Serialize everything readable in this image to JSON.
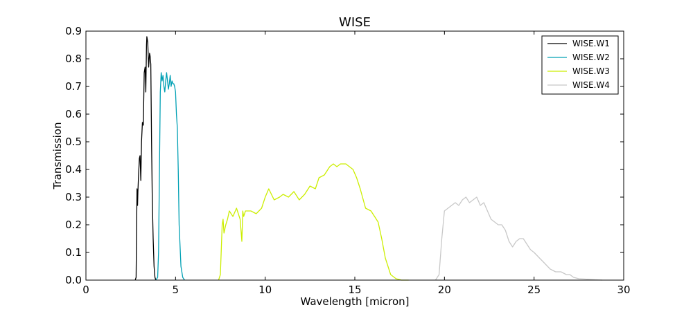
{
  "chart_data": {
    "type": "line",
    "title": "WISE",
    "xlabel": "Wavelength [micron]",
    "ylabel": "Transmission",
    "xlim": [
      0,
      30
    ],
    "ylim": [
      0,
      0.9
    ],
    "xticks": [
      "0",
      "5",
      "10",
      "15",
      "20",
      "25",
      "30"
    ],
    "yticks": [
      "0.0",
      "0.1",
      "0.2",
      "0.3",
      "0.4",
      "0.5",
      "0.6",
      "0.7",
      "0.8",
      "0.9"
    ],
    "grid": false,
    "legend_position": "top-right",
    "series": [
      {
        "name": "WISE.W1",
        "color": "#000000",
        "x": [
          2.75,
          2.8,
          2.85,
          2.88,
          2.9,
          2.93,
          2.98,
          3.02,
          3.06,
          3.1,
          3.15,
          3.2,
          3.25,
          3.3,
          3.34,
          3.38,
          3.4,
          3.45,
          3.5,
          3.55,
          3.58,
          3.62,
          3.66,
          3.7,
          3.75,
          3.8,
          3.85,
          3.9
        ],
        "y": [
          0.0,
          0.01,
          0.33,
          0.27,
          0.32,
          0.37,
          0.44,
          0.45,
          0.36,
          0.5,
          0.57,
          0.56,
          0.75,
          0.77,
          0.68,
          0.85,
          0.88,
          0.86,
          0.77,
          0.82,
          0.81,
          0.78,
          0.5,
          0.3,
          0.15,
          0.05,
          0.01,
          0.0
        ]
      },
      {
        "name": "WISE.W2",
        "color": "#00a0b4",
        "x": [
          3.9,
          4.0,
          4.05,
          4.1,
          4.15,
          4.2,
          4.25,
          4.3,
          4.35,
          4.4,
          4.45,
          4.5,
          4.55,
          4.6,
          4.65,
          4.7,
          4.75,
          4.8,
          4.85,
          4.9,
          4.95,
          5.0,
          5.05,
          5.1,
          5.15,
          5.2,
          5.3,
          5.4,
          5.5
        ],
        "y": [
          0.0,
          0.01,
          0.1,
          0.4,
          0.68,
          0.75,
          0.72,
          0.74,
          0.7,
          0.68,
          0.72,
          0.75,
          0.72,
          0.69,
          0.71,
          0.74,
          0.7,
          0.72,
          0.71,
          0.71,
          0.7,
          0.68,
          0.6,
          0.55,
          0.4,
          0.2,
          0.05,
          0.01,
          0.0
        ]
      },
      {
        "name": "WISE.W3",
        "color": "#ccee00",
        "x": [
          7.4,
          7.5,
          7.6,
          7.65,
          7.7,
          7.8,
          7.9,
          8.0,
          8.2,
          8.4,
          8.6,
          8.7,
          8.75,
          8.8,
          8.9,
          9.2,
          9.5,
          9.8,
          10.0,
          10.2,
          10.5,
          10.8,
          11.0,
          11.3,
          11.6,
          11.9,
          12.2,
          12.5,
          12.8,
          13.0,
          13.3,
          13.6,
          13.8,
          14.0,
          14.2,
          14.5,
          14.7,
          14.9,
          15.1,
          15.3,
          15.6,
          15.9,
          16.1,
          16.3,
          16.5,
          16.7,
          17.0,
          17.3,
          17.6,
          18.0
        ],
        "y": [
          0.0,
          0.02,
          0.2,
          0.22,
          0.17,
          0.2,
          0.22,
          0.25,
          0.23,
          0.26,
          0.22,
          0.14,
          0.25,
          0.23,
          0.25,
          0.25,
          0.24,
          0.26,
          0.3,
          0.33,
          0.29,
          0.3,
          0.31,
          0.3,
          0.32,
          0.29,
          0.31,
          0.34,
          0.33,
          0.37,
          0.38,
          0.41,
          0.42,
          0.41,
          0.42,
          0.42,
          0.41,
          0.4,
          0.37,
          0.33,
          0.26,
          0.25,
          0.23,
          0.21,
          0.15,
          0.08,
          0.02,
          0.005,
          0.0,
          0.0
        ]
      },
      {
        "name": "WISE.W4",
        "color": "#c8c8c8",
        "x": [
          19.5,
          19.7,
          19.85,
          20.0,
          20.2,
          20.4,
          20.6,
          20.8,
          21.0,
          21.2,
          21.4,
          21.6,
          21.8,
          22.0,
          22.2,
          22.4,
          22.6,
          22.8,
          23.0,
          23.2,
          23.4,
          23.6,
          23.8,
          24.0,
          24.2,
          24.4,
          24.6,
          24.8,
          25.0,
          25.3,
          25.6,
          25.9,
          26.2,
          26.5,
          26.8,
          27.0,
          27.2,
          27.5,
          28.0,
          28.5,
          28.8
        ],
        "y": [
          0.0,
          0.02,
          0.15,
          0.25,
          0.26,
          0.27,
          0.28,
          0.27,
          0.29,
          0.3,
          0.28,
          0.29,
          0.3,
          0.27,
          0.28,
          0.25,
          0.22,
          0.21,
          0.2,
          0.2,
          0.18,
          0.14,
          0.12,
          0.14,
          0.15,
          0.15,
          0.13,
          0.11,
          0.1,
          0.08,
          0.06,
          0.04,
          0.03,
          0.03,
          0.02,
          0.02,
          0.01,
          0.005,
          0.003,
          0.001,
          0.0
        ]
      }
    ]
  }
}
